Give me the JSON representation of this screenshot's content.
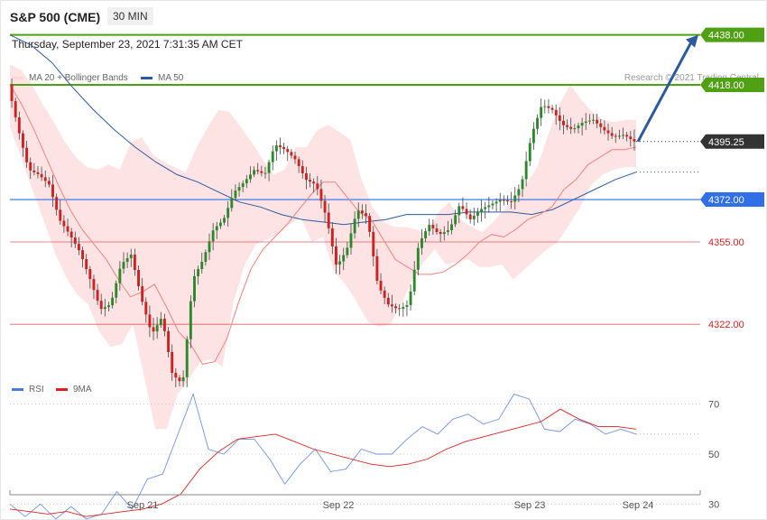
{
  "header": {
    "instrument": "S&P 500 (CME)",
    "timeframe": "30 MIN",
    "datetime": "Thursday, September 23, 2021 7:31:35 AM CET",
    "credit": "Research © 2021 Trading Central"
  },
  "legend": {
    "main": [
      {
        "label": "MA 20 + Bollinger Bands",
        "color": "#f4827d"
      },
      {
        "label": "MA 50",
        "color": "#2c5aa0"
      }
    ],
    "rsi": [
      {
        "label": "RSI",
        "color": "#4a7be0"
      },
      {
        "label": "9MA",
        "color": "#e02020"
      }
    ]
  },
  "chart_data": [
    {
      "type": "candlestick",
      "ylim": [
        4300,
        4452
      ],
      "x_labels": [
        "Sep 21",
        "Sep 22",
        "Sep 23",
        "Sep 24"
      ],
      "levels": [
        {
          "value": 4438.0,
          "label": "4438.00",
          "kind": "resistance",
          "color": "#4fa012"
        },
        {
          "value": 4418.0,
          "label": "4418.00",
          "kind": "resistance",
          "color": "#4fa012"
        },
        {
          "value": 4395.25,
          "label": "4395.25",
          "kind": "last",
          "color": "#333333"
        },
        {
          "value": 4372.0,
          "label": "4372.00",
          "kind": "pivot",
          "color": "#2f6fe8"
        },
        {
          "value": 4355.0,
          "label": "4355.00",
          "kind": "support",
          "color": "#d82020"
        },
        {
          "value": 4322.0,
          "label": "4322.00",
          "kind": "support",
          "color": "#d82020"
        }
      ],
      "price_path": [
        4418,
        4400,
        4384,
        4382,
        4378,
        4364,
        4358,
        4351,
        4340,
        4328,
        4330,
        4346,
        4350,
        4332,
        4318,
        4325,
        4302,
        4298,
        4340,
        4348,
        4360,
        4364,
        4375,
        4379,
        4384,
        4382,
        4394,
        4392,
        4388,
        4380,
        4378,
        4365,
        4345,
        4352,
        4368,
        4365,
        4338,
        4330,
        4328,
        4330,
        4354,
        4362,
        4358,
        4360,
        4370,
        4364,
        4368,
        4370,
        4372,
        4371,
        4378,
        4398,
        4410,
        4408,
        4402,
        4400,
        4403,
        4404,
        4400,
        4397,
        4398,
        4395.25
      ],
      "bb_upper": [
        4426,
        4424,
        4418,
        4410,
        4403,
        4395,
        4389,
        4385,
        4384,
        4386,
        4384,
        4395,
        4397,
        4390,
        4387,
        4385,
        4383,
        4393,
        4401,
        4408,
        4407,
        4401,
        4395,
        4388,
        4382,
        4384,
        4393,
        4393,
        4400,
        4402,
        4399,
        4396,
        4380,
        4369,
        4363,
        4361,
        4361,
        4360,
        4358,
        4367,
        4371,
        4364,
        4361,
        4359,
        4363,
        4368,
        4373,
        4378,
        4385,
        4398,
        4410,
        4418,
        4412,
        4407,
        4404,
        4403,
        4404,
        4404
      ],
      "bb_lower": [
        4401,
        4389,
        4376,
        4364,
        4351,
        4341,
        4334,
        4330,
        4319,
        4313,
        4314,
        4322,
        4301,
        4280,
        4280,
        4294,
        4300,
        4307,
        4308,
        4305,
        4331,
        4346,
        4354,
        4356,
        4358,
        4362,
        4365,
        4355,
        4357,
        4343,
        4338,
        4331,
        4323,
        4321,
        4322,
        4330,
        4340,
        4347,
        4352,
        4346,
        4347,
        4348,
        4345,
        4345,
        4346,
        4340,
        4344,
        4348,
        4352,
        4355,
        4362,
        4369,
        4378,
        4382,
        4384,
        4385,
        4385
      ],
      "ma20": [
        4418,
        4410,
        4400,
        4389,
        4378,
        4368,
        4360,
        4354,
        4348,
        4340,
        4333,
        4335,
        4338,
        4329,
        4319,
        4314,
        4306,
        4307,
        4316,
        4331,
        4344,
        4352,
        4357,
        4362,
        4368,
        4374,
        4379,
        4379,
        4373,
        4367,
        4364,
        4356,
        4348,
        4345,
        4342,
        4342,
        4343,
        4346,
        4350,
        4355,
        4358,
        4357,
        4360,
        4364,
        4366,
        4369,
        4376,
        4380,
        4386,
        4389,
        4392,
        4392,
        4393
      ],
      "ma50": [
        4438,
        4434,
        4427,
        4417,
        4408,
        4400,
        4393,
        4387,
        4382,
        4379,
        4375,
        4371,
        4369,
        4366,
        4364,
        4363,
        4362,
        4363,
        4364,
        4366,
        4366,
        4366,
        4367,
        4367,
        4367,
        4366,
        4368,
        4372,
        4376,
        4380,
        4383
      ],
      "forecast": {
        "from": 4395.25,
        "to": 4438.0
      }
    },
    {
      "type": "line",
      "title": "RSI",
      "ylim": [
        20,
        80
      ],
      "y_ticks": [
        70,
        50,
        30
      ],
      "series": [
        {
          "name": "RSI",
          "values": [
            30,
            25,
            30,
            24,
            29,
            24,
            26,
            35,
            28,
            40,
            42,
            58,
            74,
            52,
            50,
            56,
            56,
            48,
            38,
            46,
            52,
            43,
            44,
            52,
            50,
            50,
            56,
            61,
            58,
            64,
            66,
            62,
            64,
            74,
            72,
            60,
            59,
            64,
            62,
            58,
            60,
            58
          ]
        },
        {
          "name": "9MA",
          "values": [
            28,
            27,
            26,
            27,
            25,
            26,
            27,
            28,
            30,
            34,
            44,
            51,
            56,
            57,
            58,
            55,
            52,
            50,
            48,
            46,
            45,
            46,
            48,
            52,
            55,
            57,
            59,
            61,
            63,
            68,
            64,
            61,
            61,
            60
          ]
        }
      ]
    }
  ]
}
